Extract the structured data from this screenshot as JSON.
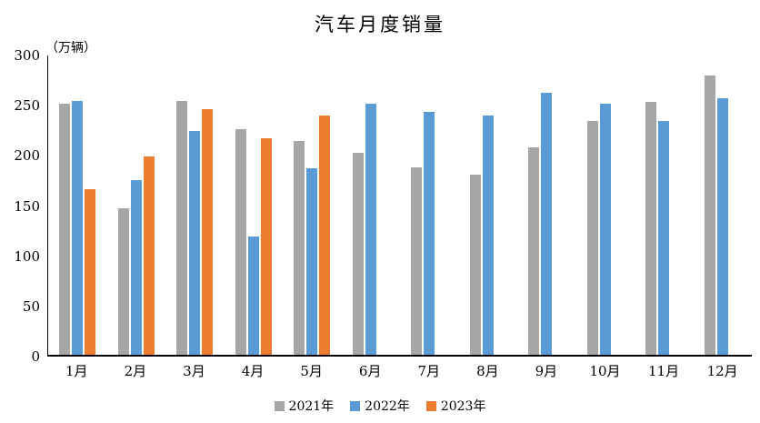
{
  "chart_data": {
    "type": "bar",
    "title": "汽车月度销量",
    "unit_label": "（万辆）",
    "categories": [
      "1月",
      "2月",
      "3月",
      "4月",
      "5月",
      "6月",
      "7月",
      "8月",
      "9月",
      "10月",
      "11月",
      "12月"
    ],
    "series": [
      {
        "name": "2021年",
        "color": "#A6A6A6",
        "values": [
          250.3,
          145.5,
          252.6,
          225.2,
          212.8,
          201.5,
          186.4,
          179.9,
          206.7,
          233.3,
          252.2,
          278.6
        ]
      },
      {
        "name": "2022年",
        "color": "#5B9BD5",
        "values": [
          253.1,
          173.7,
          223.4,
          118.1,
          186.2,
          250.2,
          242.0,
          238.3,
          261.0,
          250.5,
          232.8,
          255.6
        ]
      },
      {
        "name": "2023年",
        "color": "#ED7D31",
        "values": [
          164.9,
          197.6,
          245.1,
          215.9,
          238.2,
          null,
          null,
          null,
          null,
          null,
          null,
          null
        ]
      }
    ],
    "y_axis": {
      "min": 0,
      "max": 300,
      "step": 50,
      "ticks": [
        0,
        50,
        100,
        150,
        200,
        250,
        300
      ]
    },
    "grid": false,
    "legend_position": "bottom",
    "axis_color": "#000000",
    "background_color": "#FFFFFF"
  }
}
